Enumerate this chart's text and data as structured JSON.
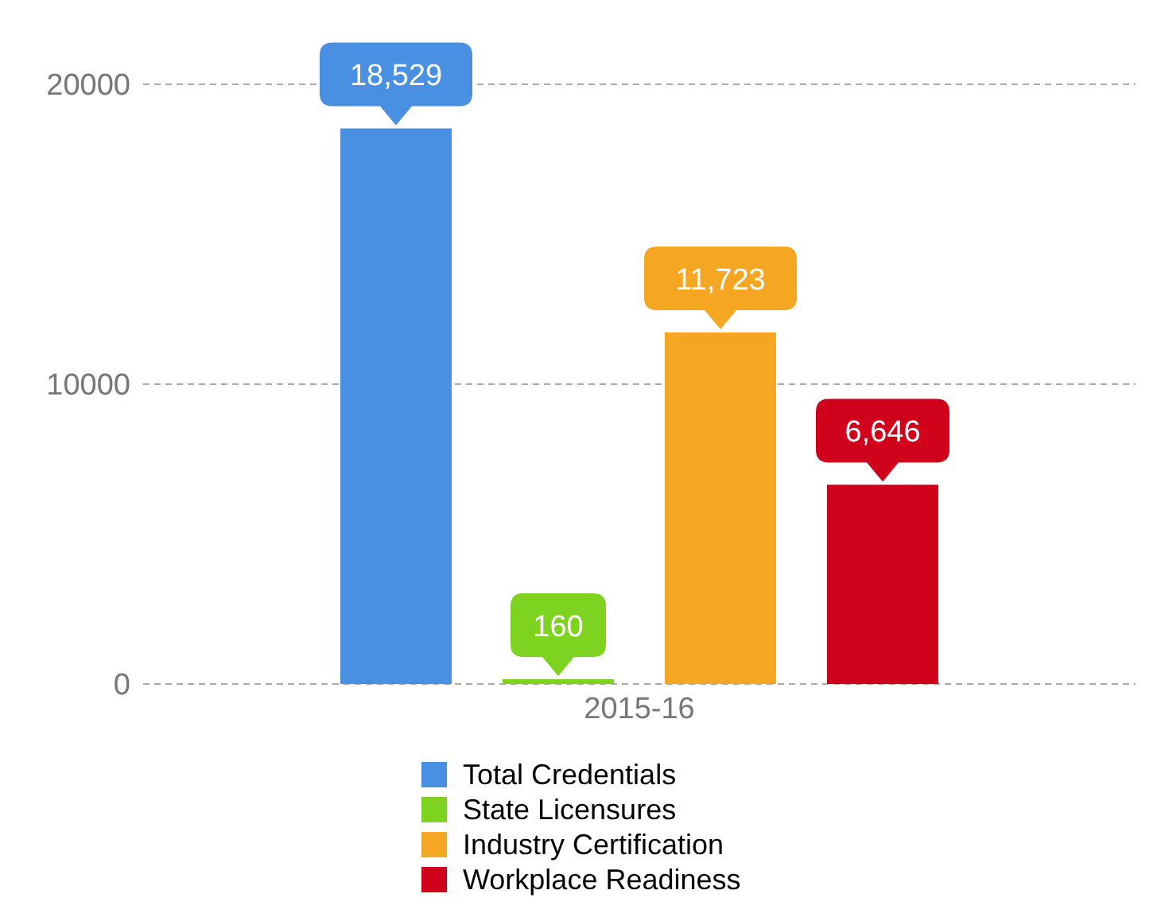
{
  "chart_data": {
    "type": "bar",
    "categories": [
      "2015-16"
    ],
    "series": [
      {
        "name": "Total Credentials",
        "color": "#4a90e2",
        "values": [
          18529
        ],
        "value_labels": [
          "18,529"
        ]
      },
      {
        "name": "State Licensures",
        "color": "#7ed321",
        "values": [
          160
        ],
        "value_labels": [
          "160"
        ]
      },
      {
        "name": "Industry Certification",
        "color": "#f5a623",
        "values": [
          11723
        ],
        "value_labels": [
          "11,723"
        ]
      },
      {
        "name": "Workplace Readiness",
        "color": "#d0021b",
        "values": [
          6646
        ],
        "value_labels": [
          "6,646"
        ]
      }
    ],
    "ylim": [
      0,
      20000
    ],
    "yticks": [
      0,
      10000,
      20000
    ],
    "grid": "y",
    "legend": "bottom"
  }
}
